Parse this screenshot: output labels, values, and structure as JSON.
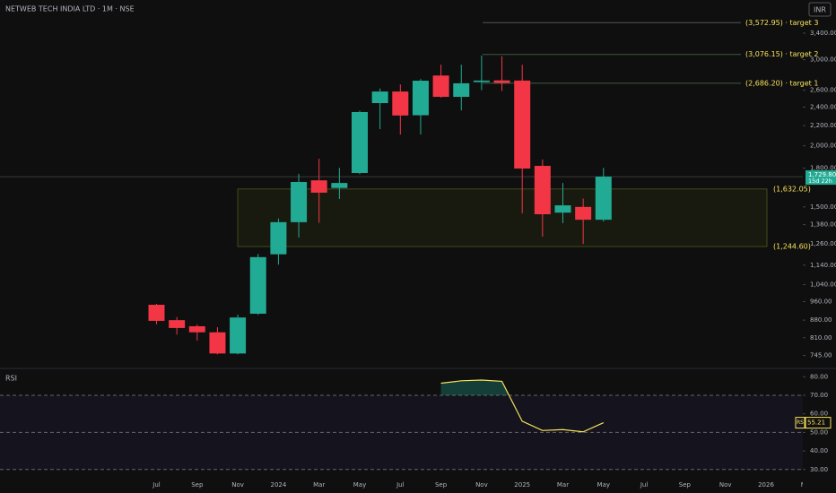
{
  "chart_data": {
    "type": "candlestick",
    "title": "NETWEB TECH INDIA LTD · 1M · NSE",
    "currency": "INR",
    "categories": [
      "Jul",
      null,
      "Sep",
      null,
      "Nov",
      null,
      "2024",
      null,
      "Mar",
      null,
      "May",
      null,
      "Jul",
      null,
      "Sep",
      null,
      "Nov",
      null,
      "2025",
      null,
      "Mar",
      null,
      "May",
      null,
      "Jul",
      null,
      "Sep",
      null,
      "Nov",
      null,
      "2026",
      null,
      "Mar"
    ],
    "open": [
      946,
      880,
      855,
      831,
      752,
      907,
      1200,
      1396,
      1700,
      1640,
      1760,
      2446,
      2583,
      2310,
      2785,
      2519,
      2700,
      2722,
      2720,
      1820,
      1460,
      1500,
      1412,
      null,
      null,
      null,
      null,
      null,
      null,
      null,
      null,
      null,
      null
    ],
    "high": [
      950,
      893,
      862,
      851,
      903,
      1202,
      1420,
      1753,
      1882,
      1803,
      2360,
      2620,
      2671,
      2740,
      2932,
      2930,
      3060,
      3050,
      2930,
      1876,
      1679,
      1560,
      1803,
      null,
      null,
      null,
      null,
      null,
      null,
      null,
      null,
      null,
      null
    ],
    "low": [
      863,
      822,
      799,
      749,
      749,
      902,
      1143,
      1299,
      1392,
      1557,
      1750,
      2164,
      2109,
      2110,
      2510,
      2363,
      2600,
      2590,
      1456,
      1304,
      1390,
      1260,
      1400,
      null,
      null,
      null,
      null,
      null,
      null,
      null,
      null,
      null,
      null
    ],
    "close": [
      877,
      848,
      831,
      752,
      891,
      1184,
      1396,
      1687,
      1604,
      1679,
      2345,
      2583,
      2307,
      2718,
      2519,
      2685,
      2720,
      2690,
      1797,
      1449,
      1511,
      1412,
      1729.8,
      null,
      null,
      null,
      null,
      null,
      null,
      null,
      null,
      null,
      null
    ],
    "up_color": "#22ab94",
    "down_color": "#f23645",
    "ylim": [
      704,
      3975
    ],
    "log_scale": true,
    "yticks": [
      {
        "value": 745,
        "label": "745.00"
      },
      {
        "value": 810,
        "label": "810.00"
      },
      {
        "value": 880,
        "label": "880.00"
      },
      {
        "value": 960,
        "label": "960.00"
      },
      {
        "value": 1040,
        "label": "1,040.00"
      },
      {
        "value": 1140,
        "label": "1,140.00"
      },
      {
        "value": 1260,
        "label": "1,260.00"
      },
      {
        "value": 1380,
        "label": "1,380.00"
      },
      {
        "value": 1500,
        "label": "1,500.00"
      },
      {
        "value": 1800,
        "label": "1,800.00"
      },
      {
        "value": 2000,
        "label": "2,000.00"
      },
      {
        "value": 2200,
        "label": "2,200.00"
      },
      {
        "value": 2400,
        "label": "2,400.00"
      },
      {
        "value": 2600,
        "label": "2,600.00"
      },
      {
        "value": 3000,
        "label": "3,000.00"
      },
      {
        "value": 3400,
        "label": "3,400.00"
      }
    ],
    "last_price_label": "1,729.80",
    "countdown": "15d 22h",
    "targets": [
      {
        "value": 3572.95,
        "label": "(3,572.95) · target 3"
      },
      {
        "value": 3076.15,
        "label": "(3,076.15) · target 2"
      },
      {
        "value": 2686.2,
        "label": "(2,686.20) · target 1"
      }
    ],
    "zone": [
      {
        "value": 1632.05,
        "label": "(1,632.05)"
      },
      {
        "value": 1244.6,
        "label": "(1,244.60)"
      }
    ],
    "rsi": {
      "name": "RSI",
      "color": "#f7e25b",
      "values": [
        null,
        null,
        null,
        null,
        null,
        null,
        null,
        null,
        null,
        null,
        null,
        null,
        null,
        null,
        76.5,
        77.8,
        78.2,
        77.5,
        56,
        51,
        51.5,
        50.3,
        55.21,
        null,
        null,
        null,
        null,
        null,
        null,
        null,
        null,
        null,
        null
      ],
      "ylim": [
        27,
        84
      ],
      "yticks": [
        {
          "value": 30,
          "label": "30.00"
        },
        {
          "value": 40,
          "label": "40.00"
        },
        {
          "value": 50,
          "label": "50.00"
        },
        {
          "value": 60,
          "label": "60.00"
        },
        {
          "value": 70,
          "label": "70.00"
        },
        {
          "value": 80,
          "label": "80.00"
        }
      ],
      "levels": [
        70,
        50,
        30
      ]
    }
  }
}
